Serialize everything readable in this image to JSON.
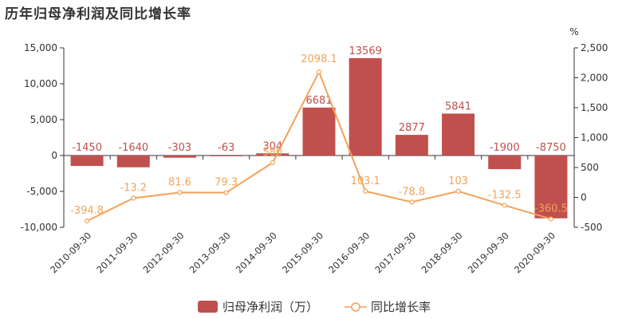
{
  "chart_data": {
    "type": "bar+line",
    "title": "历年归母净利润及同比增长率",
    "categories": [
      "2010-09-30",
      "2011-09-30",
      "2012-09-30",
      "2013-09-30",
      "2014-09-30",
      "2015-09-30",
      "2016-09-30",
      "2017-09-30",
      "2018-09-30",
      "2019-09-30",
      "2020-09-30"
    ],
    "series": [
      {
        "name": "归母净利润（万）",
        "type": "bar",
        "axis": "left",
        "color": "#c0504d",
        "values": [
          -1450,
          -1640,
          -303,
          -63,
          304,
          6681,
          13569,
          2877,
          5841,
          -1900,
          -8750
        ],
        "labels": [
          "-1450",
          "-1640",
          "-303",
          "-63",
          "304",
          "6681",
          "13569",
          "2877",
          "5841",
          "-1900",
          "-8750"
        ]
      },
      {
        "name": "同比增长率",
        "type": "line",
        "axis": "right",
        "color": "#f4a259",
        "values": [
          -394.8,
          -13.2,
          81.6,
          79.3,
          580,
          2098.1,
          103.1,
          -78.8,
          103,
          -132.5,
          -360.5
        ],
        "labels": [
          "-394.8",
          "-13.2",
          "81.6",
          "79.3",
          "580",
          "2098.1",
          "103.1",
          "-78.8",
          "103",
          "-132.5",
          "-360.5"
        ]
      }
    ],
    "y_left": {
      "ylim": [
        -10000,
        15000
      ],
      "ticks": [
        15000,
        10000,
        5000,
        0,
        -5000,
        -10000
      ],
      "tick_labels": [
        "15,000",
        "10,000",
        "5,000",
        "0",
        "-5,000",
        "-10,000"
      ]
    },
    "y_right": {
      "ylim": [
        -500,
        2500
      ],
      "unit": "%",
      "ticks": [
        2500,
        2000,
        1500,
        1000,
        500,
        0,
        -500
      ],
      "tick_labels": [
        "2,500",
        "2,000",
        "1,500",
        "1,000",
        "500",
        "0",
        "-500"
      ]
    },
    "grid": false,
    "legend_position": "bottom-center"
  }
}
